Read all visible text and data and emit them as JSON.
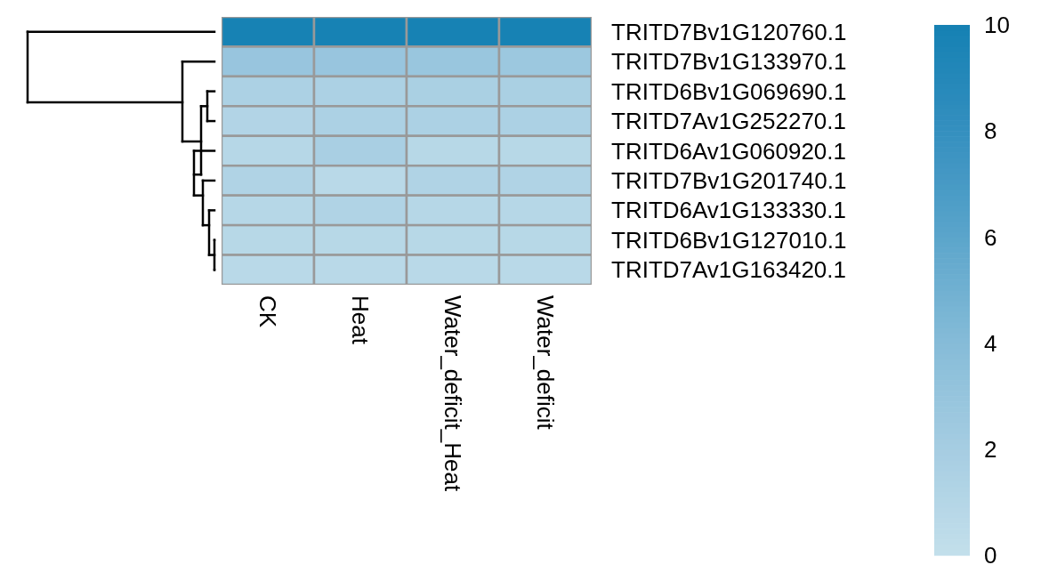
{
  "chart_data": {
    "type": "heatmap",
    "categories": [
      "CK",
      "Heat",
      "Water_deficit_Heat",
      "Water_deficit"
    ],
    "y_categories": [
      "TRITD7Bv1G120760.1",
      "TRITD7Bv1G133970.1",
      "TRITD6Bv1G069690.1",
      "TRITD7Av1G252270.1",
      "TRITD6Av1G060920.1",
      "TRITD7Bv1G201740.1",
      "TRITD6Av1G133330.1",
      "TRITD6Bv1G127010.1",
      "TRITD7Av1G163420.1"
    ],
    "cells": [
      [
        9.9,
        9.9,
        9.9,
        9.9
      ],
      [
        2.9,
        2.9,
        2.8,
        2.6
      ],
      [
        1.6,
        1.6,
        1.7,
        1.7
      ],
      [
        1.2,
        1.6,
        1.6,
        1.6
      ],
      [
        0.9,
        1.8,
        0.8,
        0.8
      ],
      [
        1.3,
        0.7,
        1.3,
        1.3
      ],
      [
        0.9,
        1.3,
        0.9,
        0.9
      ],
      [
        0.8,
        0.8,
        0.8,
        0.8
      ],
      [
        0.7,
        0.7,
        0.7,
        0.7
      ]
    ],
    "clim": [
      0,
      10
    ],
    "cticks": [
      0,
      2,
      4,
      6,
      8,
      10
    ]
  }
}
